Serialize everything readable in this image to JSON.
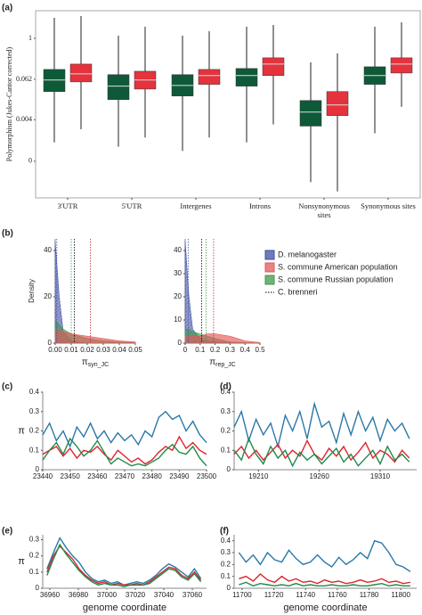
{
  "chart_data": [
    {
      "type": "box",
      "panel_label": "(a)",
      "y_label": "Polymorphism (Jukes-Cantor corrected)",
      "y_scale": "log",
      "categories": [
        "3'UTR",
        "5'UTR",
        "Intergenes",
        "Introns",
        "Nonsynonymous sites",
        "Synonymous sites"
      ],
      "ylim": [
        2e-05,
        6.5
      ],
      "yticks": [
        1,
        0.062,
        0.004,
        {
          "value": 0.00024,
          "label": "0"
        }
      ],
      "series": [
        {
          "color": "#0e5a38",
          "min": [
            0.00086,
            0.00064,
            0.00048,
            0.00086,
            5.8e-05,
            0.0016
          ],
          "q1": [
            0.027,
            0.0156,
            0.02,
            0.039,
            0.0026,
            0.044
          ],
          "median": [
            0.059,
            0.039,
            0.041,
            0.08,
            0.0067,
            0.08
          ],
          "q3": [
            0.121,
            0.085,
            0.085,
            0.129,
            0.0147,
            0.145
          ],
          "max": [
            4.0,
            1.2,
            1.2,
            2.19,
            0.196,
            2.19
          ]
        },
        {
          "color": "#e4333d",
          "min": [
            0.0021,
            0.0012,
            0.0012,
            0.0029,
            3.1e-05,
            0.0096
          ],
          "q1": [
            0.052,
            0.032,
            0.044,
            0.08,
            0.0053,
            0.095
          ],
          "median": [
            0.09,
            0.059,
            0.08,
            0.174,
            0.0109,
            0.174
          ],
          "q3": [
            0.174,
            0.107,
            0.121,
            0.266,
            0.027,
            0.266
          ],
          "max": [
            4.51,
            2.19,
            1.62,
            2.47,
            0.359,
            2.96
          ]
        }
      ]
    },
    {
      "type": "area",
      "panel_label": "(b)",
      "y_label": "Density",
      "x_label": "π",
      "x_label_sub": "syn_JC",
      "x": [
        0,
        0.0025,
        0.005,
        0.01,
        0.015,
        0.02,
        0.03,
        0.04,
        0.05
      ],
      "xlim": [
        0,
        0.05
      ],
      "xticks": [
        {
          "value": 0,
          "label": "0.00"
        },
        0.01,
        0.02,
        0.03,
        0.04,
        0.05
      ],
      "ylim": [
        0,
        45
      ],
      "yticks": [
        0,
        20,
        40
      ],
      "series": [
        {
          "color": "#3f4fa3",
          "values": [
            44,
            20,
            5,
            1,
            0.3,
            0.1,
            0,
            0,
            0
          ]
        },
        {
          "color": "#3e9a4b",
          "values": [
            10,
            8,
            6,
            4,
            3,
            2,
            1,
            0.5,
            0.2
          ]
        },
        {
          "color": "#e05a5a",
          "values": [
            6,
            6,
            5,
            4,
            3.5,
            3,
            2,
            1,
            0.5
          ]
        }
      ],
      "reference_lines": [
        {
          "x": 0.001,
          "color": "#3f4fa3"
        },
        {
          "x": 0.01,
          "color": "#3e9a4b"
        },
        {
          "x": 0.012,
          "color": "#000000"
        },
        {
          "x": 0.022,
          "color": "#c0282c"
        }
      ]
    },
    {
      "type": "area",
      "x_label": "π",
      "x_label_sub": "rep_JC",
      "x": [
        0,
        0.025,
        0.05,
        0.1,
        0.15,
        0.2,
        0.3,
        0.4,
        0.5
      ],
      "xlim": [
        0,
        0.5
      ],
      "xticks": [
        0,
        0.1,
        0.2,
        0.3,
        0.4,
        0.5
      ],
      "ylim": [
        0,
        45
      ],
      "yticks": [
        0,
        10,
        20,
        30,
        40
      ],
      "series": [
        {
          "color": "#3f4fa3",
          "values": [
            44,
            20,
            6,
            2,
            1,
            0.5,
            0.2,
            0,
            0
          ]
        },
        {
          "color": "#3e9a4b",
          "values": [
            6,
            6,
            5,
            4,
            3,
            2,
            0.5,
            0.2,
            0
          ]
        },
        {
          "color": "#e05a5a",
          "values": [
            3,
            3,
            3,
            3,
            4,
            4,
            3,
            1,
            0.3
          ]
        }
      ],
      "reference_lines": [
        {
          "x": 0.02,
          "color": "#3f4fa3"
        },
        {
          "x": 0.11,
          "color": "#000000"
        },
        {
          "x": 0.14,
          "color": "#3e9a4b"
        },
        {
          "x": 0.19,
          "color": "#c0282c"
        }
      ],
      "legend": [
        {
          "name": "D. melanogaster",
          "color": "#3f4fa3"
        },
        {
          "name": "S. commune American population",
          "color": "#e05a5a"
        },
        {
          "name": "S. commune Russian population",
          "color": "#3e9a4b"
        },
        {
          "name": "C. brenneri",
          "color": "#000000",
          "style": "dotted"
        }
      ]
    },
    {
      "type": "line",
      "panel_label": "(c)",
      "y_label": "π",
      "x": [
        23440,
        23442.5,
        23445,
        23447.5,
        23450,
        23452.5,
        23455,
        23457.5,
        23460,
        23462.5,
        23465,
        23467.5,
        23470,
        23472.5,
        23475,
        23477.5,
        23480,
        23482.5,
        23485,
        23487.5,
        23490,
        23492.5,
        23495,
        23497.5,
        23500
      ],
      "xlim": [
        23440,
        23500
      ],
      "xticks": [
        23440,
        23450,
        23460,
        23470,
        23480,
        23490,
        23500
      ],
      "ylim": [
        0,
        0.4
      ],
      "yticks": [
        0,
        0.1,
        0.2,
        0.3,
        0.4
      ],
      "series": [
        {
          "color": "#2a78a8",
          "values": [
            0.18,
            0.24,
            0.15,
            0.2,
            0.12,
            0.22,
            0.17,
            0.24,
            0.16,
            0.2,
            0.14,
            0.19,
            0.15,
            0.18,
            0.13,
            0.2,
            0.17,
            0.27,
            0.3,
            0.26,
            0.28,
            0.2,
            0.25,
            0.18,
            0.14
          ]
        },
        {
          "color": "#e0242c",
          "values": [
            0.08,
            0.1,
            0.12,
            0.07,
            0.11,
            0.06,
            0.1,
            0.09,
            0.12,
            0.08,
            0.05,
            0.1,
            0.07,
            0.04,
            0.06,
            0.03,
            0.05,
            0.09,
            0.12,
            0.1,
            0.17,
            0.11,
            0.14,
            0.1,
            0.08
          ]
        },
        {
          "color": "#1f8a4a",
          "values": [
            0.05,
            0.1,
            0.14,
            0.08,
            0.16,
            0.12,
            0.07,
            0.1,
            0.15,
            0.09,
            0.03,
            0.06,
            0.04,
            0.02,
            0.03,
            0.02,
            0.04,
            0.06,
            0.1,
            0.13,
            0.09,
            0.08,
            0.12,
            0.06,
            0.02
          ]
        }
      ]
    },
    {
      "type": "line",
      "panel_label": "(d)",
      "x": [
        19190,
        19196,
        19202,
        19208,
        19214,
        19220,
        19226,
        19232,
        19238,
        19244,
        19250,
        19256,
        19262,
        19268,
        19274,
        19280,
        19286,
        19292,
        19298,
        19304,
        19310,
        19316,
        19322,
        19328,
        19334
      ],
      "xlim": [
        19190,
        19340
      ],
      "xticks": [
        19210,
        19260,
        19310
      ],
      "ylim": [
        0,
        0.4
      ],
      "yticks": [
        0,
        0.1,
        0.2,
        0.3,
        0.4
      ],
      "series": [
        {
          "color": "#2a78a8",
          "values": [
            0.22,
            0.3,
            0.15,
            0.26,
            0.18,
            0.24,
            0.12,
            0.28,
            0.2,
            0.3,
            0.16,
            0.34,
            0.22,
            0.25,
            0.14,
            0.29,
            0.18,
            0.3,
            0.2,
            0.27,
            0.15,
            0.26,
            0.2,
            0.24,
            0.16
          ]
        },
        {
          "color": "#e0242c",
          "values": [
            0.08,
            0.12,
            0.06,
            0.1,
            0.05,
            0.09,
            0.13,
            0.06,
            0.1,
            0.07,
            0.15,
            0.08,
            0.05,
            0.11,
            0.07,
            0.12,
            0.05,
            0.09,
            0.14,
            0.06,
            0.1,
            0.08,
            0.04,
            0.1,
            0.06
          ]
        },
        {
          "color": "#1f8a4a",
          "values": [
            0.1,
            0.05,
            0.16,
            0.08,
            0.03,
            0.12,
            0.06,
            0.1,
            0.02,
            0.09,
            0.05,
            0.08,
            0.03,
            0.07,
            0.11,
            0.04,
            0.08,
            0.02,
            0.06,
            0.1,
            0.03,
            0.12,
            0.05,
            0.08,
            0.04
          ]
        }
      ]
    },
    {
      "type": "line",
      "panel_label": "(e)",
      "y_label": "π",
      "x_label": "genome coordinate",
      "x": [
        36958,
        36962.5,
        36967,
        36971.5,
        36976,
        36980.5,
        36985,
        36989.5,
        36994,
        36998.5,
        37003,
        37007.5,
        37012,
        37016.5,
        37021,
        37025.5,
        37030,
        37034.5,
        37039,
        37043.5,
        37048,
        37052.5,
        37057,
        37061.5,
        37066
      ],
      "xlim": [
        36955,
        37070
      ],
      "xticks": [
        36960,
        36980,
        37000,
        37020,
        37040,
        37060
      ],
      "ylim": [
        0,
        0.33
      ],
      "yticks": [
        0,
        0.1,
        0.2,
        0.3
      ],
      "series": [
        {
          "color": "#2a78a8",
          "values": [
            0.12,
            0.22,
            0.31,
            0.25,
            0.2,
            0.16,
            0.1,
            0.06,
            0.04,
            0.05,
            0.03,
            0.04,
            0.02,
            0.03,
            0.04,
            0.03,
            0.05,
            0.08,
            0.12,
            0.15,
            0.13,
            0.1,
            0.07,
            0.12,
            0.06
          ]
        },
        {
          "color": "#e0242c",
          "values": [
            0.1,
            0.2,
            0.26,
            0.22,
            0.18,
            0.12,
            0.08,
            0.05,
            0.03,
            0.04,
            0.02,
            0.03,
            0.02,
            0.02,
            0.03,
            0.02,
            0.04,
            0.07,
            0.1,
            0.13,
            0.12,
            0.08,
            0.06,
            0.1,
            0.05
          ]
        },
        {
          "color": "#1f8a4a",
          "values": [
            0.08,
            0.18,
            0.27,
            0.21,
            0.16,
            0.11,
            0.07,
            0.04,
            0.02,
            0.03,
            0.02,
            0.02,
            0.01,
            0.02,
            0.02,
            0.02,
            0.03,
            0.06,
            0.09,
            0.12,
            0.11,
            0.07,
            0.05,
            0.09,
            0.04
          ]
        }
      ]
    },
    {
      "type": "line",
      "panel_label": "(f)",
      "x_label": "genome coordinate",
      "x": [
        11698,
        11702.5,
        11707,
        11711.5,
        11716,
        11720.5,
        11725,
        11729.5,
        11734,
        11738.5,
        11743,
        11747.5,
        11752,
        11756.5,
        11761,
        11765.5,
        11770,
        11774.5,
        11779,
        11783.5,
        11788,
        11792.5,
        11797,
        11801.5,
        11806
      ],
      "xlim": [
        11695,
        11810
      ],
      "xticks": [
        11700,
        11720,
        11740,
        11760,
        11780,
        11800
      ],
      "ylim": [
        0,
        0.45
      ],
      "yticks": [
        0,
        0.1,
        0.2,
        0.3,
        0.4
      ],
      "series": [
        {
          "color": "#2a78a8",
          "values": [
            0.3,
            0.22,
            0.28,
            0.2,
            0.3,
            0.24,
            0.22,
            0.32,
            0.25,
            0.2,
            0.22,
            0.28,
            0.22,
            0.18,
            0.26,
            0.2,
            0.24,
            0.3,
            0.25,
            0.4,
            0.38,
            0.3,
            0.2,
            0.18,
            0.14
          ]
        },
        {
          "color": "#e0242c",
          "values": [
            0.08,
            0.1,
            0.06,
            0.12,
            0.07,
            0.05,
            0.1,
            0.06,
            0.08,
            0.05,
            0.06,
            0.04,
            0.07,
            0.05,
            0.06,
            0.04,
            0.05,
            0.07,
            0.05,
            0.06,
            0.08,
            0.05,
            0.06,
            0.04,
            0.05
          ]
        },
        {
          "color": "#1f8a4a",
          "values": [
            0.03,
            0.05,
            0.02,
            0.04,
            0.03,
            0.02,
            0.03,
            0.02,
            0.04,
            0.02,
            0.03,
            0.02,
            0.02,
            0.03,
            0.02,
            0.02,
            0.03,
            0.02,
            0.02,
            0.03,
            0.04,
            0.02,
            0.03,
            0.02,
            0.02
          ]
        }
      ]
    }
  ]
}
